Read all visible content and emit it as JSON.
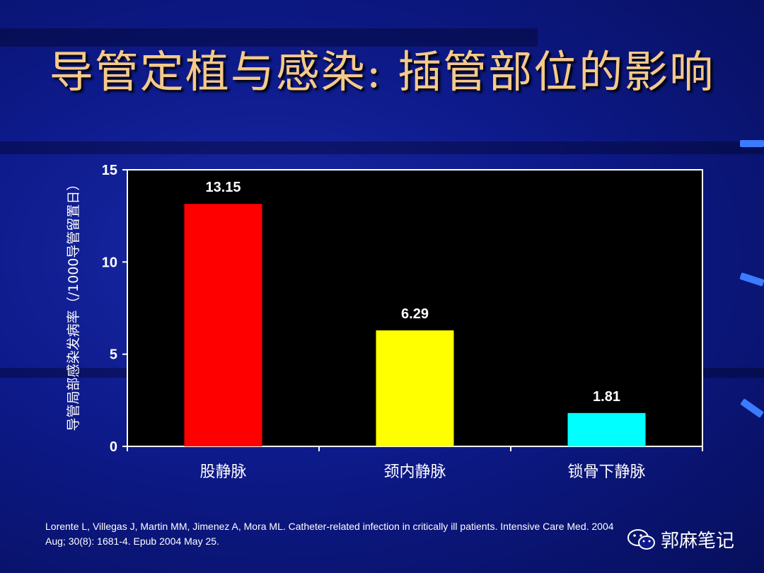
{
  "slide": {
    "title": "导管定植与感染: 插管部位的影响",
    "reference": "Lorente L, Villegas J, Martin MM, Jimenez A, Mora ML. Catheter-related infection in critically ill patients. Intensive Care Med. 2004 Aug; 30(8): 1681-4. Epub 2004 May 25.",
    "watermark": "郭麻笔记",
    "colors": {
      "title": "#f5c98a",
      "plot_bg": "#000000",
      "axis": "#ffffff"
    }
  },
  "chart_data": {
    "type": "bar",
    "title": "",
    "categories": [
      "股静脉",
      "颈内静脉",
      "锁骨下静脉"
    ],
    "values": [
      13.15,
      6.29,
      1.81
    ],
    "value_labels": [
      "13.15",
      "6.29",
      "1.81"
    ],
    "colors": [
      "#ff0000",
      "#ffff00",
      "#00ffff"
    ],
    "xlabel": "",
    "ylabel": "导管局部感染发病率（/1000导管留置日）",
    "ylim": [
      0,
      15
    ],
    "yticks": [
      0,
      5,
      10,
      15
    ],
    "grid": false,
    "legend": "none"
  }
}
